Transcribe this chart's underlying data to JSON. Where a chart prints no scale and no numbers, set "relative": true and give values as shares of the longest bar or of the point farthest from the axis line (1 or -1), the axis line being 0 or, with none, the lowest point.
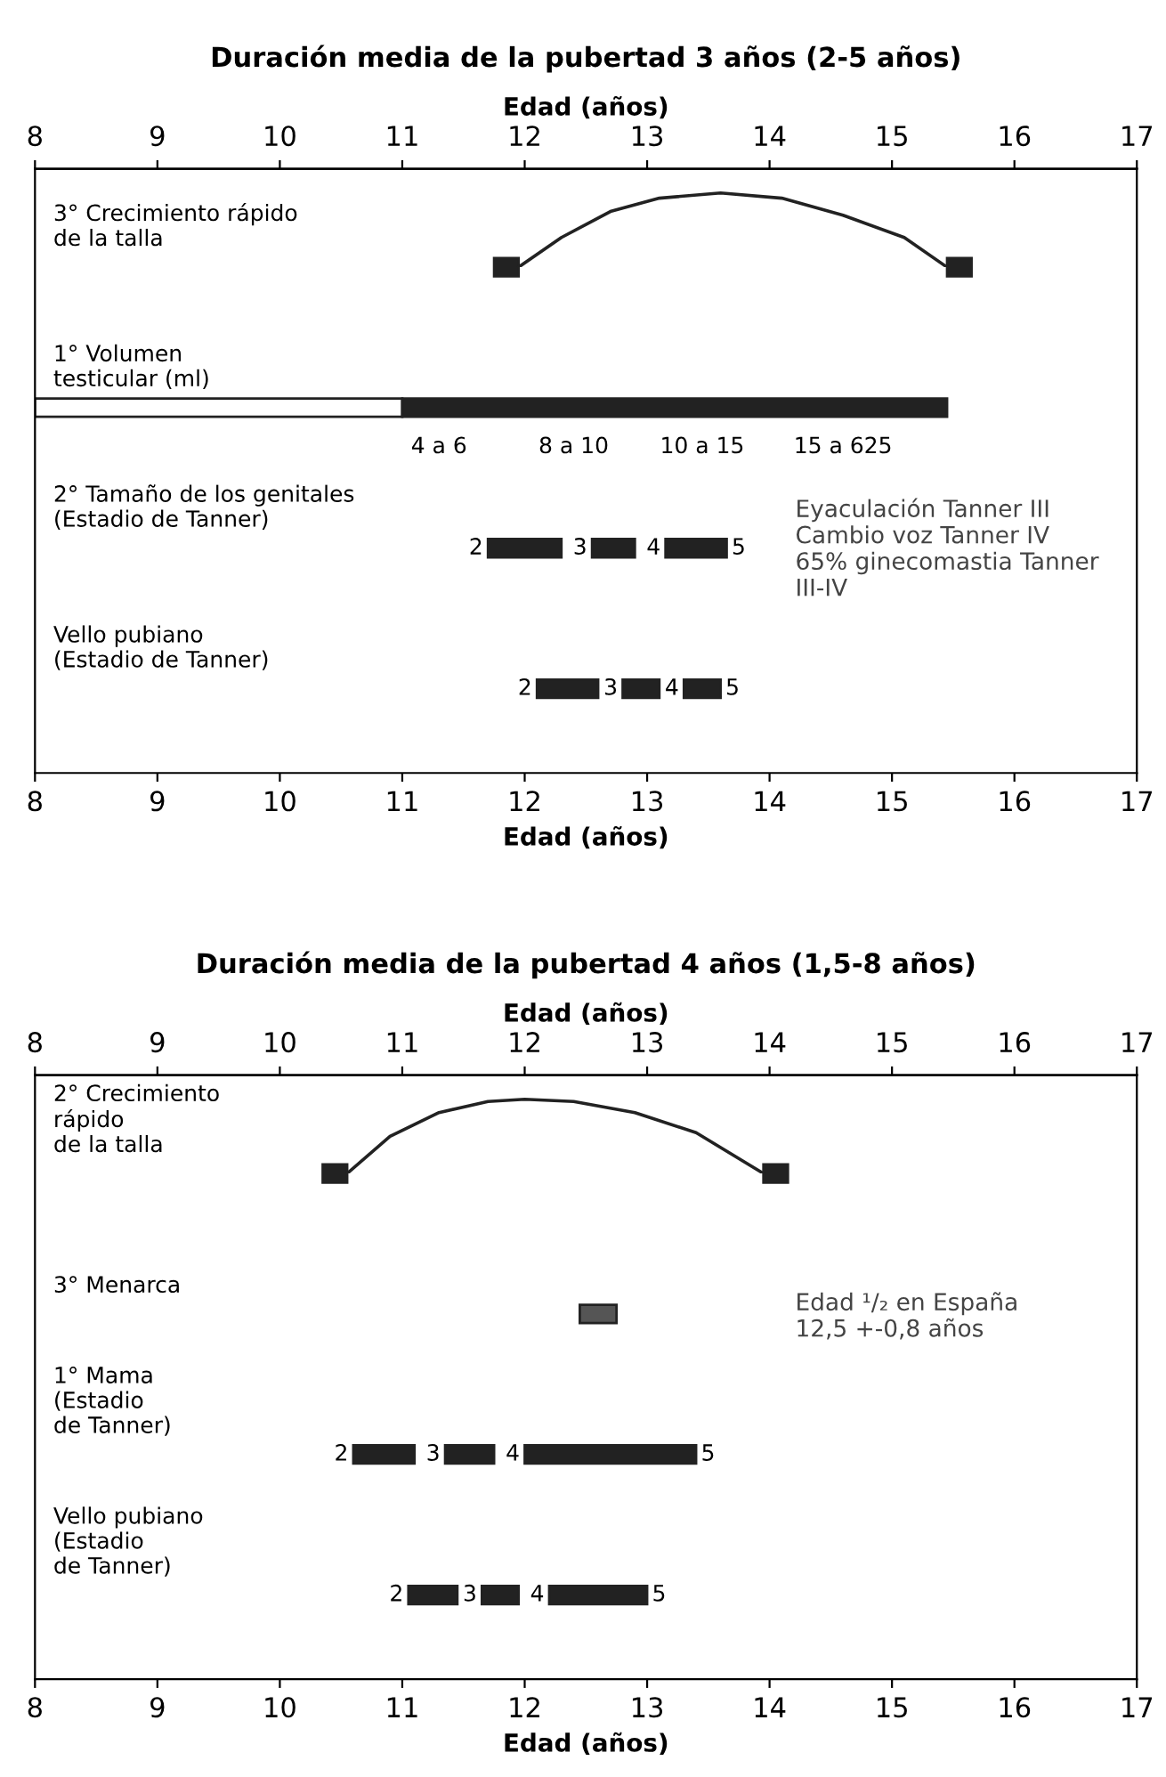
{
  "chart_data": [
    {
      "type": "line",
      "relative": true,
      "tick_labels": "x",
      "title": "Duración media de la pubertad 3 años (2-5 años)",
      "xlabel": "Edad (años)",
      "xlim": [
        8,
        17
      ],
      "xticks": [
        8,
        9,
        10,
        11,
        12,
        13,
        14,
        15,
        16,
        17
      ],
      "x": [
        11.95,
        12.3,
        12.7,
        13.1,
        13.6,
        14.1,
        14.6,
        15.1,
        15.45
      ],
      "series": [
        {
          "color": "#222222",
          "values": [
            0,
            0.4,
            0.75,
            0.93,
            1,
            0.93,
            0.7,
            0.4,
            0
          ]
        }
      ]
    },
    {
      "type": "bar",
      "orientation": "horizontal",
      "xlabel": "Edad (años)",
      "xlim": [
        8,
        17
      ],
      "xticks": [
        8,
        9,
        10,
        11,
        12,
        13,
        14,
        15,
        16,
        17
      ],
      "categories": [
        "3° Crecimiento rápido\nde la talla",
        "1° Volumen\ntesticular (ml)",
        "2° Tamaño de los genitales\n(Estadio de Tanner)",
        "Vello pubiano\n(Estadio de Tanner)"
      ],
      "series": [
        {
          "base": [
            11.75,
            8,
            11.7,
            12.1
          ],
          "values": [
            0.2,
            3,
            0.6,
            0.5
          ],
          "colors": [
            "#222222",
            "#ffffff",
            "#222222",
            "#222222"
          ]
        },
        {
          "base": [
            15.45,
            11,
            12.55,
            12.8
          ],
          "values": [
            0.2,
            4.45,
            0.35,
            0.3
          ],
          "color": "#222222"
        },
        {
          "base": [
            null,
            null,
            13.15,
            13.3
          ],
          "values": [
            null,
            null,
            0.5,
            0.3
          ],
          "color": "#222222"
        }
      ],
      "annotations": [
        {
          "text": "4 a 6",
          "x": 11.3,
          "y": "1° Volumen\ntesticular (ml)"
        },
        {
          "text": "8 a 10",
          "x": 12.4,
          "y": "1° Volumen\ntesticular (ml)"
        },
        {
          "text": "10 a 15",
          "x": 13.45,
          "y": "1° Volumen\ntesticular (ml)"
        },
        {
          "text": "15 a 625",
          "x": 14.6,
          "y": "1° Volumen\ntesticular (ml)"
        },
        "2",
        "3",
        "4",
        "5",
        "2",
        "3",
        "4",
        "5",
        "Eyaculación Tanner III\nCambio voz Tanner IV\n65% ginecomastia Tanner\nIII-IV"
      ]
    },
    {
      "type": "line",
      "relative": true,
      "tick_labels": "x",
      "title": "Duración media de la pubertad 4 años (1,5-8 años)",
      "xlabel": "Edad (años)",
      "xlim": [
        8,
        17
      ],
      "xticks": [
        8,
        9,
        10,
        11,
        12,
        13,
        14,
        15,
        16,
        17
      ],
      "x": [
        10.55,
        10.9,
        11.3,
        11.7,
        12.0,
        12.4,
        12.9,
        13.4,
        13.95
      ],
      "series": [
        {
          "color": "#222222",
          "values": [
            0,
            0.5,
            0.82,
            0.97,
            1,
            0.97,
            0.82,
            0.55,
            0
          ]
        }
      ]
    },
    {
      "type": "bar",
      "orientation": "horizontal",
      "xlabel": "Edad (años)",
      "xlim": [
        8,
        17
      ],
      "xticks": [
        8,
        9,
        10,
        11,
        12,
        13,
        14,
        15,
        16,
        17
      ],
      "categories": [
        "2° Crecimiento\nrápido\nde la talla",
        "3° Menarca",
        "1° Mama\n(Estadio\nde Tanner)",
        "Vello pubiano\n(Estadio\nde Tanner)"
      ],
      "series": [
        {
          "base": [
            10.35,
            12.45,
            10.6,
            11.05
          ],
          "values": [
            0.2,
            0.3,
            0.5,
            0.4
          ],
          "colors": [
            "#222222",
            "#555555",
            "#222222",
            "#222222"
          ]
        },
        {
          "base": [
            13.95,
            null,
            11.35,
            11.65
          ],
          "values": [
            0.2,
            null,
            0.4,
            0.3
          ],
          "color": "#222222"
        },
        {
          "base": [
            null,
            null,
            12.0,
            12.2
          ],
          "values": [
            null,
            null,
            1.4,
            0.8
          ],
          "color": "#222222"
        }
      ],
      "annotations": [
        "2",
        "3",
        "4",
        "5",
        "2",
        "3",
        "4",
        "5",
        "Edad ¹/₂ en España\n12,5 +-0,8 años"
      ]
    }
  ]
}
